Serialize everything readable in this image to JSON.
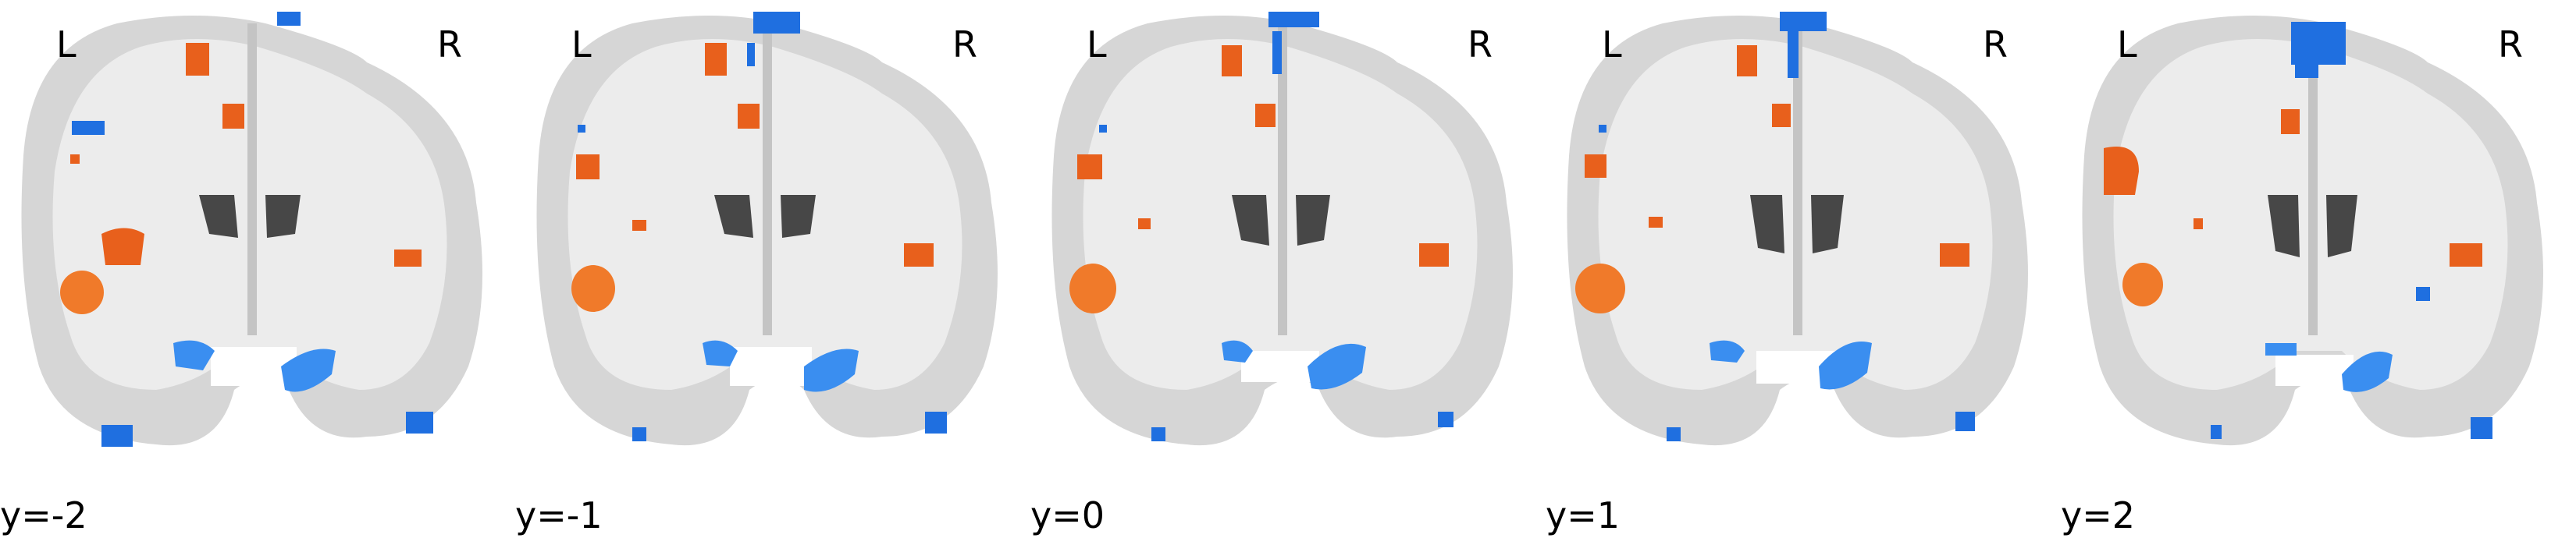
{
  "panels": [
    {
      "cut_label": "y=-2",
      "left_label": "L",
      "right_label": "R"
    },
    {
      "cut_label": "y=-1",
      "left_label": "L",
      "right_label": "R"
    },
    {
      "cut_label": "y=0",
      "left_label": "L",
      "right_label": "R"
    },
    {
      "cut_label": "y=1",
      "left_label": "L",
      "right_label": "R"
    },
    {
      "cut_label": "y=2",
      "left_label": "L",
      "right_label": "R"
    }
  ],
  "colors": {
    "background": "#ffffff",
    "brain_tissue": "#d6d6d6",
    "brain_light": "#ececec",
    "ventricle": "#474747",
    "positive_activation": "#e8601c",
    "negative_activation": "#1f6fe0"
  },
  "view": "coronal"
}
